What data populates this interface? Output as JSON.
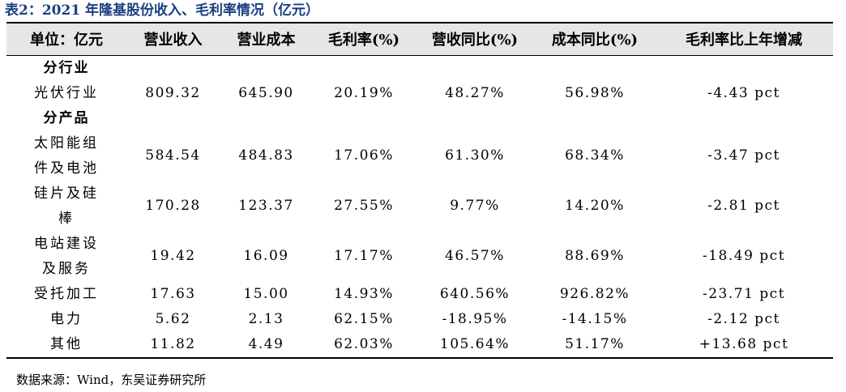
{
  "caption": "表2：2021 年隆基股份收入、毛利率情况（亿元）",
  "columns": [
    "单位：亿元",
    "营业收入",
    "营业成本",
    "毛利率(%)",
    "营收同比(%)",
    "成本同比(%)",
    "毛利率比上年增减"
  ],
  "sections": [
    {
      "title": "分行业",
      "rows": [
        {
          "label": [
            "光伏行业"
          ],
          "values": [
            "809.32",
            "645.90",
            "20.19%",
            "48.27%",
            "56.98%",
            "-4.43 pct"
          ]
        }
      ]
    },
    {
      "title": "分产品",
      "rows": [
        {
          "label": [
            "太阳能组",
            "件及电池"
          ],
          "values": [
            "584.54",
            "484.83",
            "17.06%",
            "61.30%",
            "68.34%",
            "-3.47 pct"
          ]
        },
        {
          "label": [
            "硅片及硅",
            "棒"
          ],
          "values": [
            "170.28",
            "123.37",
            "27.55%",
            "9.77%",
            "14.20%",
            "-2.81 pct"
          ]
        },
        {
          "label": [
            "电站建设",
            "及服务"
          ],
          "values": [
            "19.42",
            "16.09",
            "17.17%",
            "46.57%",
            "88.69%",
            "-18.49 pct"
          ]
        },
        {
          "label": [
            "受托加工"
          ],
          "values": [
            "17.63",
            "15.00",
            "14.93%",
            "640.56%",
            "926.82%",
            "-23.71 pct"
          ]
        },
        {
          "label": [
            "电力"
          ],
          "values": [
            "5.62",
            "2.13",
            "62.15%",
            "-18.95%",
            "-14.15%",
            "-2.12 pct"
          ]
        },
        {
          "label": [
            "其他"
          ],
          "values": [
            "11.82",
            "4.49",
            "62.03%",
            "105.64%",
            "51.17%",
            "+13.68 pct"
          ]
        }
      ]
    }
  ],
  "source": "数据来源：Wind，东吴证券研究所"
}
